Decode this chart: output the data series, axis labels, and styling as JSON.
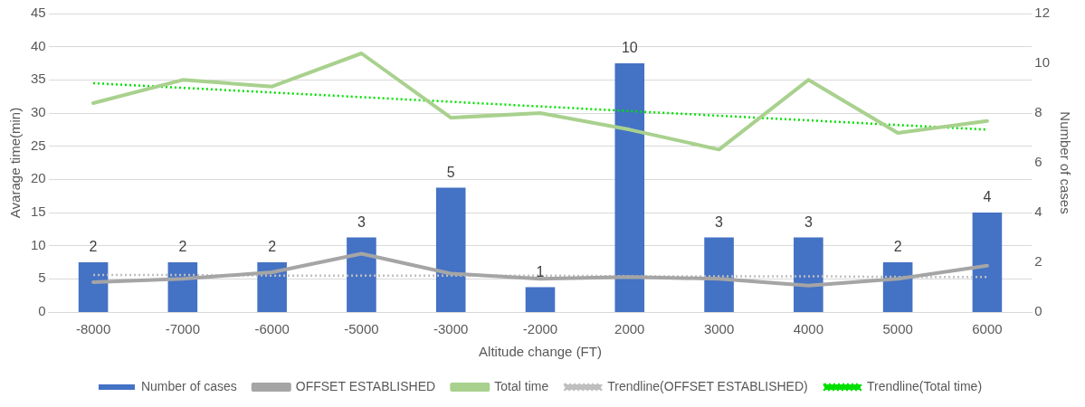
{
  "chart_data": {
    "type": "bar",
    "xlabel": "Altitude change (FT)",
    "ylabel": "Avarage time(min)",
    "y2label": "Number of cases",
    "categories": [
      "-8000",
      "-7000",
      "-6000",
      "-5000",
      "-3000",
      "-2000",
      "2000",
      "3000",
      "4000",
      "5000",
      "6000"
    ],
    "series": [
      {
        "name": "Number of cases",
        "axis": "y2",
        "color": "#4472c4",
        "values": [
          2,
          2,
          2,
          3,
          5,
          1,
          10,
          3,
          3,
          2,
          4
        ],
        "value_labels": [
          "2",
          "2",
          "2",
          "3",
          "5",
          "1",
          "10",
          "3",
          "3",
          "2",
          "4"
        ]
      },
      {
        "name": "OFFSET ESTABLISHED",
        "type": "line",
        "color": "#a5a5a5",
        "line_style": "solid",
        "values": [
          4.5,
          5,
          6,
          8.8,
          5.8,
          5,
          5.3,
          5,
          4,
          5,
          7
        ]
      },
      {
        "name": "Total time",
        "type": "line",
        "color": "#a9d18e",
        "line_style": "solid",
        "values": [
          31.5,
          35,
          34,
          39,
          29.3,
          30,
          27.5,
          24.5,
          35,
          27,
          28.8
        ]
      },
      {
        "name": "Trendline(OFFSET ESTABLISHED)",
        "type": "line",
        "color": "#bfbfbf",
        "line_style": "dotted",
        "values": [
          5.6,
          5.6,
          5.5,
          5.5,
          5.5,
          5.5,
          5.4,
          5.4,
          5.4,
          5.3,
          5.3
        ]
      },
      {
        "name": "Trendline(Total time)",
        "type": "line",
        "color": "#00e000",
        "line_style": "dotted",
        "values": [
          34.5,
          33.8,
          33.1,
          32.4,
          31.7,
          31.0,
          30.3,
          29.6,
          28.9,
          28.2,
          27.5
        ]
      }
    ],
    "ylim": [
      0,
      45
    ],
    "yticks": [
      0,
      5,
      10,
      15,
      20,
      25,
      30,
      35,
      40,
      45
    ],
    "y2lim": [
      0,
      12
    ],
    "y2ticks": [
      0,
      2,
      4,
      6,
      8,
      10,
      12
    ],
    "grid": "y",
    "legend": "bottom",
    "marker": "none"
  }
}
